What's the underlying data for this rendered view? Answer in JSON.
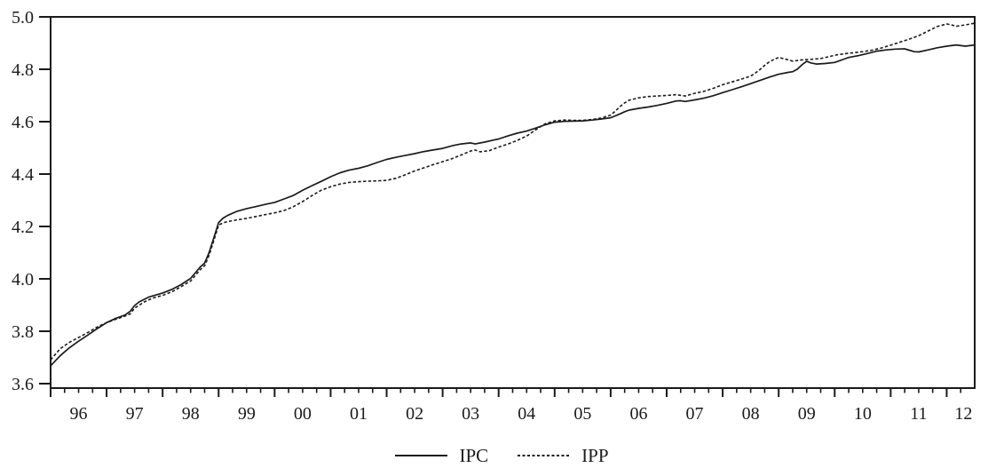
{
  "chart_data": {
    "type": "line",
    "title": "",
    "xlabel": "",
    "ylabel": "",
    "colors": {
      "line": "#1a1a1a",
      "text": "#1b1b1c",
      "background": "#ffffff"
    },
    "x_axis": {
      "range": [
        1996,
        2012.5
      ],
      "minor_tick_interval": 0.25,
      "tick_years": [
        1996,
        1997,
        1998,
        1999,
        2000,
        2001,
        2002,
        2003,
        2004,
        2005,
        2006,
        2007,
        2008,
        2009,
        2010,
        2011,
        2012
      ],
      "labels": [
        {
          "text": "96",
          "position": 1996.5
        },
        {
          "text": "97",
          "position": 1997.5
        },
        {
          "text": "98",
          "position": 1998.5
        },
        {
          "text": "99",
          "position": 1999.5
        },
        {
          "text": "00",
          "position": 2000.5
        },
        {
          "text": "01",
          "position": 2001.5
        },
        {
          "text": "02",
          "position": 2002.5
        },
        {
          "text": "03",
          "position": 2003.5
        },
        {
          "text": "04",
          "position": 2004.5
        },
        {
          "text": "05",
          "position": 2005.5
        },
        {
          "text": "06",
          "position": 2006.5
        },
        {
          "text": "07",
          "position": 2007.5
        },
        {
          "text": "08",
          "position": 2008.5
        },
        {
          "text": "09",
          "position": 2009.5
        },
        {
          "text": "10",
          "position": 2010.5
        },
        {
          "text": "11",
          "position": 2011.5
        },
        {
          "text": "12",
          "position": 2012.3
        }
      ]
    },
    "y_axis": {
      "range": [
        3.6,
        5.0
      ],
      "ticks": [
        5.0,
        4.8,
        4.6,
        4.4,
        4.2,
        4.0,
        3.8,
        3.6
      ],
      "tick_labels": [
        "5.0",
        "4.8",
        "4.6",
        "4.4",
        "4.2",
        "4.0",
        "3.8",
        "3.6"
      ],
      "grid": false
    },
    "legend": {
      "position": "bottom-center",
      "items": [
        {
          "label": "IPC",
          "line_style": "solid"
        },
        {
          "label": "IPP",
          "line_style": "dashed"
        }
      ]
    },
    "series": [
      {
        "name": "IPC",
        "style": "solid",
        "color": "#1a1a1a",
        "points": [
          [
            1996.0,
            3.668
          ],
          [
            1996.17,
            3.706
          ],
          [
            1996.33,
            3.736
          ],
          [
            1996.5,
            3.762
          ],
          [
            1996.67,
            3.786
          ],
          [
            1996.83,
            3.81
          ],
          [
            1997.0,
            3.833
          ],
          [
            1997.17,
            3.85
          ],
          [
            1997.25,
            3.856
          ],
          [
            1997.33,
            3.862
          ],
          [
            1997.42,
            3.876
          ],
          [
            1997.5,
            3.898
          ],
          [
            1997.58,
            3.912
          ],
          [
            1997.75,
            3.93
          ],
          [
            1997.92,
            3.941
          ],
          [
            1998.0,
            3.946
          ],
          [
            1998.17,
            3.96
          ],
          [
            1998.33,
            3.978
          ],
          [
            1998.5,
            4.002
          ],
          [
            1998.58,
            4.022
          ],
          [
            1998.67,
            4.045
          ],
          [
            1998.75,
            4.06
          ],
          [
            1998.83,
            4.1
          ],
          [
            1998.92,
            4.16
          ],
          [
            1999.0,
            4.215
          ],
          [
            1999.08,
            4.232
          ],
          [
            1999.17,
            4.243
          ],
          [
            1999.33,
            4.258
          ],
          [
            1999.5,
            4.268
          ],
          [
            1999.67,
            4.276
          ],
          [
            1999.83,
            4.284
          ],
          [
            2000.0,
            4.292
          ],
          [
            2000.17,
            4.305
          ],
          [
            2000.33,
            4.318
          ],
          [
            2000.5,
            4.338
          ],
          [
            2000.67,
            4.356
          ],
          [
            2000.83,
            4.372
          ],
          [
            2001.0,
            4.39
          ],
          [
            2001.17,
            4.405
          ],
          [
            2001.33,
            4.415
          ],
          [
            2001.5,
            4.422
          ],
          [
            2001.67,
            4.432
          ],
          [
            2001.83,
            4.444
          ],
          [
            2002.0,
            4.456
          ],
          [
            2002.17,
            4.464
          ],
          [
            2002.33,
            4.471
          ],
          [
            2002.5,
            4.478
          ],
          [
            2002.67,
            4.486
          ],
          [
            2002.83,
            4.492
          ],
          [
            2003.0,
            4.498
          ],
          [
            2003.17,
            4.508
          ],
          [
            2003.33,
            4.515
          ],
          [
            2003.5,
            4.519
          ],
          [
            2003.58,
            4.515
          ],
          [
            2003.75,
            4.522
          ],
          [
            2003.92,
            4.53
          ],
          [
            2004.0,
            4.534
          ],
          [
            2004.17,
            4.546
          ],
          [
            2004.33,
            4.556
          ],
          [
            2004.5,
            4.564
          ],
          [
            2004.67,
            4.576
          ],
          [
            2004.83,
            4.588
          ],
          [
            2005.0,
            4.598
          ],
          [
            2005.17,
            4.601
          ],
          [
            2005.33,
            4.602
          ],
          [
            2005.5,
            4.603
          ],
          [
            2005.67,
            4.606
          ],
          [
            2005.83,
            4.61
          ],
          [
            2006.0,
            4.615
          ],
          [
            2006.17,
            4.63
          ],
          [
            2006.25,
            4.638
          ],
          [
            2006.33,
            4.644
          ],
          [
            2006.5,
            4.651
          ],
          [
            2006.67,
            4.656
          ],
          [
            2006.83,
            4.662
          ],
          [
            2007.0,
            4.67
          ],
          [
            2007.17,
            4.679
          ],
          [
            2007.25,
            4.68
          ],
          [
            2007.33,
            4.677
          ],
          [
            2007.5,
            4.683
          ],
          [
            2007.67,
            4.69
          ],
          [
            2007.83,
            4.699
          ],
          [
            2008.0,
            4.711
          ],
          [
            2008.17,
            4.722
          ],
          [
            2008.33,
            4.733
          ],
          [
            2008.5,
            4.745
          ],
          [
            2008.67,
            4.758
          ],
          [
            2008.83,
            4.77
          ],
          [
            2009.0,
            4.781
          ],
          [
            2009.17,
            4.788
          ],
          [
            2009.25,
            4.791
          ],
          [
            2009.33,
            4.8
          ],
          [
            2009.42,
            4.818
          ],
          [
            2009.5,
            4.83
          ],
          [
            2009.58,
            4.824
          ],
          [
            2009.67,
            4.82
          ],
          [
            2009.83,
            4.822
          ],
          [
            2010.0,
            4.826
          ],
          [
            2010.17,
            4.839
          ],
          [
            2010.25,
            4.845
          ],
          [
            2010.42,
            4.852
          ],
          [
            2010.58,
            4.86
          ],
          [
            2010.75,
            4.869
          ],
          [
            2010.92,
            4.874
          ],
          [
            2011.08,
            4.877
          ],
          [
            2011.25,
            4.878
          ],
          [
            2011.33,
            4.873
          ],
          [
            2011.42,
            4.867
          ],
          [
            2011.5,
            4.866
          ],
          [
            2011.67,
            4.874
          ],
          [
            2011.83,
            4.882
          ],
          [
            2012.0,
            4.888
          ],
          [
            2012.17,
            4.893
          ],
          [
            2012.33,
            4.888
          ],
          [
            2012.5,
            4.893
          ]
        ]
      },
      {
        "name": "IPP",
        "style": "dashed",
        "color": "#1a1a1a",
        "points": [
          [
            1996.0,
            3.691
          ],
          [
            1996.17,
            3.733
          ],
          [
            1996.33,
            3.757
          ],
          [
            1996.5,
            3.776
          ],
          [
            1996.67,
            3.796
          ],
          [
            1996.83,
            3.816
          ],
          [
            1997.0,
            3.833
          ],
          [
            1997.17,
            3.846
          ],
          [
            1997.33,
            3.858
          ],
          [
            1997.42,
            3.866
          ],
          [
            1997.5,
            3.888
          ],
          [
            1997.67,
            3.912
          ],
          [
            1997.83,
            3.927
          ],
          [
            1998.0,
            3.937
          ],
          [
            1998.17,
            3.951
          ],
          [
            1998.33,
            3.97
          ],
          [
            1998.5,
            3.992
          ],
          [
            1998.58,
            4.012
          ],
          [
            1998.67,
            4.035
          ],
          [
            1998.75,
            4.05
          ],
          [
            1998.83,
            4.09
          ],
          [
            1998.92,
            4.15
          ],
          [
            1999.0,
            4.205
          ],
          [
            1999.08,
            4.214
          ],
          [
            1999.17,
            4.219
          ],
          [
            1999.33,
            4.225
          ],
          [
            1999.5,
            4.231
          ],
          [
            1999.67,
            4.238
          ],
          [
            1999.83,
            4.245
          ],
          [
            2000.0,
            4.252
          ],
          [
            2000.17,
            4.261
          ],
          [
            2000.33,
            4.275
          ],
          [
            2000.5,
            4.295
          ],
          [
            2000.67,
            4.318
          ],
          [
            2000.83,
            4.338
          ],
          [
            2001.0,
            4.352
          ],
          [
            2001.17,
            4.362
          ],
          [
            2001.33,
            4.368
          ],
          [
            2001.5,
            4.371
          ],
          [
            2001.67,
            4.373
          ],
          [
            2001.83,
            4.374
          ],
          [
            2002.0,
            4.376
          ],
          [
            2002.17,
            4.384
          ],
          [
            2002.33,
            4.397
          ],
          [
            2002.5,
            4.412
          ],
          [
            2002.67,
            4.424
          ],
          [
            2002.83,
            4.436
          ],
          [
            2003.0,
            4.447
          ],
          [
            2003.17,
            4.459
          ],
          [
            2003.33,
            4.473
          ],
          [
            2003.5,
            4.488
          ],
          [
            2003.58,
            4.492
          ],
          [
            2003.67,
            4.485
          ],
          [
            2003.83,
            4.489
          ],
          [
            2004.0,
            4.503
          ],
          [
            2004.17,
            4.515
          ],
          [
            2004.33,
            4.528
          ],
          [
            2004.5,
            4.545
          ],
          [
            2004.67,
            4.57
          ],
          [
            2004.83,
            4.592
          ],
          [
            2005.0,
            4.603
          ],
          [
            2005.17,
            4.606
          ],
          [
            2005.33,
            4.605
          ],
          [
            2005.5,
            4.605
          ],
          [
            2005.67,
            4.608
          ],
          [
            2005.83,
            4.614
          ],
          [
            2006.0,
            4.625
          ],
          [
            2006.08,
            4.64
          ],
          [
            2006.17,
            4.658
          ],
          [
            2006.25,
            4.672
          ],
          [
            2006.33,
            4.682
          ],
          [
            2006.5,
            4.691
          ],
          [
            2006.67,
            4.696
          ],
          [
            2006.83,
            4.698
          ],
          [
            2007.0,
            4.7
          ],
          [
            2007.17,
            4.703
          ],
          [
            2007.33,
            4.698
          ],
          [
            2007.5,
            4.708
          ],
          [
            2007.67,
            4.716
          ],
          [
            2007.83,
            4.727
          ],
          [
            2008.0,
            4.741
          ],
          [
            2008.17,
            4.752
          ],
          [
            2008.33,
            4.762
          ],
          [
            2008.5,
            4.774
          ],
          [
            2008.58,
            4.785
          ],
          [
            2008.67,
            4.8
          ],
          [
            2008.75,
            4.815
          ],
          [
            2008.83,
            4.828
          ],
          [
            2008.92,
            4.838
          ],
          [
            2009.0,
            4.845
          ],
          [
            2009.17,
            4.836
          ],
          [
            2009.25,
            4.831
          ],
          [
            2009.42,
            4.836
          ],
          [
            2009.58,
            4.838
          ],
          [
            2009.75,
            4.841
          ],
          [
            2009.92,
            4.849
          ],
          [
            2010.0,
            4.854
          ],
          [
            2010.17,
            4.859
          ],
          [
            2010.33,
            4.863
          ],
          [
            2010.5,
            4.867
          ],
          [
            2010.67,
            4.873
          ],
          [
            2010.83,
            4.881
          ],
          [
            2011.0,
            4.892
          ],
          [
            2011.17,
            4.904
          ],
          [
            2011.33,
            4.915
          ],
          [
            2011.5,
            4.928
          ],
          [
            2011.67,
            4.946
          ],
          [
            2011.83,
            4.963
          ],
          [
            2012.0,
            4.973
          ],
          [
            2012.08,
            4.97
          ],
          [
            2012.17,
            4.964
          ],
          [
            2012.33,
            4.969
          ],
          [
            2012.5,
            4.976
          ]
        ]
      }
    ]
  }
}
